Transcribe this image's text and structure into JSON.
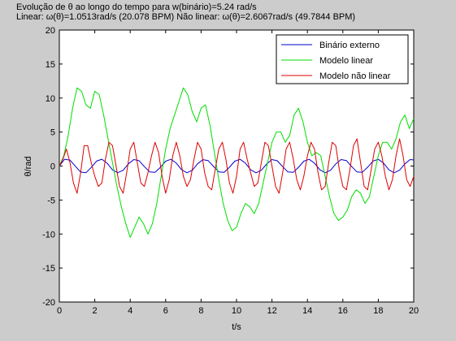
{
  "chart_data": {
    "type": "line",
    "title_line1": "Evolução de θ ao longo do tempo para w(binário)=5.24 rad/s",
    "title_line2": "Linear: ω(θ)=1.0513rad/s (20.078 BPM) Não linear: ω(θ)=2.6067rad/s (49.7844 BPM)",
    "xlabel": "t/s",
    "ylabel": "θ/rad",
    "xlim": [
      0,
      20
    ],
    "ylim": [
      -20,
      20
    ],
    "xticks": [
      "0",
      "2",
      "4",
      "6",
      "8",
      "10",
      "12",
      "14",
      "16",
      "18",
      "20"
    ],
    "yticks": [
      "20",
      "15",
      "10",
      "5",
      "0",
      "-5",
      "-10",
      "-15",
      "-20"
    ],
    "grid": false,
    "legend_position": "top-right",
    "series": [
      {
        "name": "Binário externo",
        "color": "#0000cc",
        "x": [
          0,
          0.3,
          0.6,
          0.9,
          1.2,
          1.5,
          1.8,
          2.1,
          2.4,
          2.7,
          3.0,
          3.3,
          3.6,
          3.9,
          4.2,
          4.5,
          4.8,
          5.1,
          5.4,
          5.7,
          6.0,
          6.3,
          6.6,
          6.9,
          7.2,
          7.5,
          7.8,
          8.1,
          8.4,
          8.7,
          9.0,
          9.3,
          9.6,
          9.9,
          10.2,
          10.5,
          10.8,
          11.1,
          11.4,
          11.7,
          12.0,
          12.3,
          12.6,
          12.9,
          13.2,
          13.5,
          13.8,
          14.1,
          14.4,
          14.7,
          15.0,
          15.3,
          15.6,
          15.9,
          16.2,
          16.5,
          16.8,
          17.1,
          17.4,
          17.7,
          18.0,
          18.3,
          18.6,
          18.9,
          19.2,
          19.5,
          19.8,
          20.0
        ],
        "y": [
          0,
          1.0,
          0.87,
          -0.01,
          -0.88,
          -0.99,
          -0.21,
          0.73,
          1.0,
          0.41,
          -0.56,
          -0.98,
          -0.62,
          0.32,
          0.95,
          0.79,
          -0.08,
          -0.86,
          -0.92,
          -0.19,
          0.72,
          0.99,
          0.43,
          -0.54,
          -0.99,
          -0.63,
          0.32,
          0.94,
          0.8,
          -0.06,
          -0.86,
          -0.92,
          -0.18,
          0.72,
          0.99,
          0.43,
          -0.56,
          -0.99,
          -0.62,
          0.3,
          0.95,
          0.78,
          -0.08,
          -0.87,
          -0.92,
          -0.18,
          0.72,
          0.99,
          0.42,
          -0.55,
          -0.99,
          -0.63,
          0.31,
          0.95,
          0.8,
          -0.08,
          -0.87,
          -0.92,
          -0.17,
          0.73,
          0.99,
          0.43,
          -0.56,
          -0.99,
          -0.61,
          0.32,
          0.95,
          0.9
        ]
      },
      {
        "name": "Modelo linear",
        "color": "#00dd00",
        "x": [
          0,
          0.25,
          0.5,
          0.75,
          1.0,
          1.25,
          1.5,
          1.75,
          2.0,
          2.25,
          2.5,
          2.75,
          3.0,
          3.25,
          3.5,
          3.75,
          4.0,
          4.25,
          4.5,
          4.75,
          5.0,
          5.25,
          5.5,
          5.75,
          6.0,
          6.25,
          6.5,
          6.75,
          7.0,
          7.25,
          7.5,
          7.75,
          8.0,
          8.25,
          8.5,
          8.75,
          9.0,
          9.25,
          9.5,
          9.75,
          10.0,
          10.25,
          10.5,
          10.75,
          11.0,
          11.25,
          11.5,
          11.75,
          12.0,
          12.25,
          12.5,
          12.75,
          13.0,
          13.25,
          13.5,
          13.75,
          14.0,
          14.25,
          14.5,
          14.75,
          15.0,
          15.25,
          15.5,
          15.75,
          16.0,
          16.25,
          16.5,
          16.75,
          17.0,
          17.25,
          17.5,
          17.75,
          18.0,
          18.25,
          18.5,
          18.75,
          19.0,
          19.25,
          19.5,
          19.75,
          20.0
        ],
        "y": [
          0,
          1.5,
          4.5,
          8.5,
          11.5,
          11.0,
          9.0,
          8.5,
          11.0,
          10.5,
          7.5,
          4.0,
          0.5,
          -3.0,
          -6.0,
          -8.5,
          -10.5,
          -9.0,
          -7.5,
          -8.5,
          -10.0,
          -8.5,
          -5.5,
          -1.5,
          2.5,
          5.5,
          7.5,
          9.5,
          11.5,
          10.5,
          8.0,
          6.5,
          8.5,
          9.0,
          6.0,
          2.0,
          -2.0,
          -5.5,
          -8.0,
          -9.5,
          -9.0,
          -7.0,
          -5.5,
          -6.0,
          -7.0,
          -5.5,
          -2.5,
          0.5,
          3.5,
          5.0,
          5.0,
          3.5,
          4.5,
          7.5,
          8.5,
          6.5,
          3.5,
          1.5,
          2.0,
          1.5,
          -1.5,
          -4.5,
          -7.0,
          -8.0,
          -7.5,
          -6.5,
          -4.5,
          -3.5,
          -4.0,
          -5.5,
          -4.5,
          -1.5,
          1.5,
          3.5,
          3.5,
          2.5,
          4.0,
          6.5,
          7.5,
          5.5,
          7.0
        ]
      },
      {
        "name": "Modelo não linear",
        "color": "#dd0000",
        "x": [
          0,
          0.2,
          0.4,
          0.6,
          0.8,
          1.0,
          1.2,
          1.4,
          1.6,
          1.8,
          2.0,
          2.2,
          2.4,
          2.6,
          2.8,
          3.0,
          3.2,
          3.4,
          3.6,
          3.8,
          4.0,
          4.2,
          4.4,
          4.6,
          4.8,
          5.0,
          5.2,
          5.4,
          5.6,
          5.8,
          6.0,
          6.2,
          6.4,
          6.6,
          6.8,
          7.0,
          7.2,
          7.4,
          7.6,
          7.8,
          8.0,
          8.2,
          8.4,
          8.6,
          8.8,
          9.0,
          9.2,
          9.4,
          9.6,
          9.8,
          10.0,
          10.2,
          10.4,
          10.6,
          10.8,
          11.0,
          11.2,
          11.4,
          11.6,
          11.8,
          12.0,
          12.2,
          12.4,
          12.6,
          12.8,
          13.0,
          13.2,
          13.4,
          13.6,
          13.8,
          14.0,
          14.2,
          14.4,
          14.6,
          14.8,
          15.0,
          15.2,
          15.4,
          15.6,
          15.8,
          16.0,
          16.2,
          16.4,
          16.6,
          16.8,
          17.0,
          17.2,
          17.4,
          17.6,
          17.8,
          18.0,
          18.2,
          18.4,
          18.6,
          18.8,
          19.0,
          19.2,
          19.4,
          19.6,
          19.8,
          20.0
        ],
        "y": [
          0,
          1.0,
          2.5,
          0.5,
          -2.5,
          -4.0,
          -1.0,
          3.0,
          3.0,
          0.5,
          -1.5,
          -3.0,
          -2.5,
          1.0,
          3.5,
          3.0,
          0.0,
          -3.0,
          -4.0,
          -1.0,
          2.5,
          3.5,
          0.5,
          -2.5,
          -3.0,
          -1.0,
          1.5,
          3.5,
          2.0,
          -1.5,
          -4.0,
          -2.0,
          1.5,
          3.5,
          1.5,
          -1.5,
          -3.0,
          -2.0,
          1.0,
          3.5,
          2.5,
          -1.0,
          -3.0,
          -3.5,
          -0.5,
          2.5,
          3.5,
          1.0,
          -2.5,
          -4.0,
          -1.5,
          2.5,
          3.5,
          1.0,
          -1.0,
          -3.0,
          -2.5,
          0.5,
          3.5,
          3.0,
          0.0,
          -3.0,
          -4.0,
          -1.0,
          2.5,
          3.5,
          1.0,
          -2.0,
          -3.5,
          -1.5,
          1.5,
          3.5,
          2.5,
          -1.0,
          -3.5,
          -3.0,
          0.5,
          3.5,
          3.0,
          -0.5,
          -3.0,
          -3.5,
          -0.5,
          3.0,
          4.0,
          0.5,
          -3.0,
          -3.5,
          -0.5,
          2.5,
          3.5,
          1.5,
          -1.5,
          -3.5,
          -2.0,
          1.5,
          4.0,
          1.5,
          -2.0,
          -3.0,
          -1.5
        ]
      }
    ]
  }
}
